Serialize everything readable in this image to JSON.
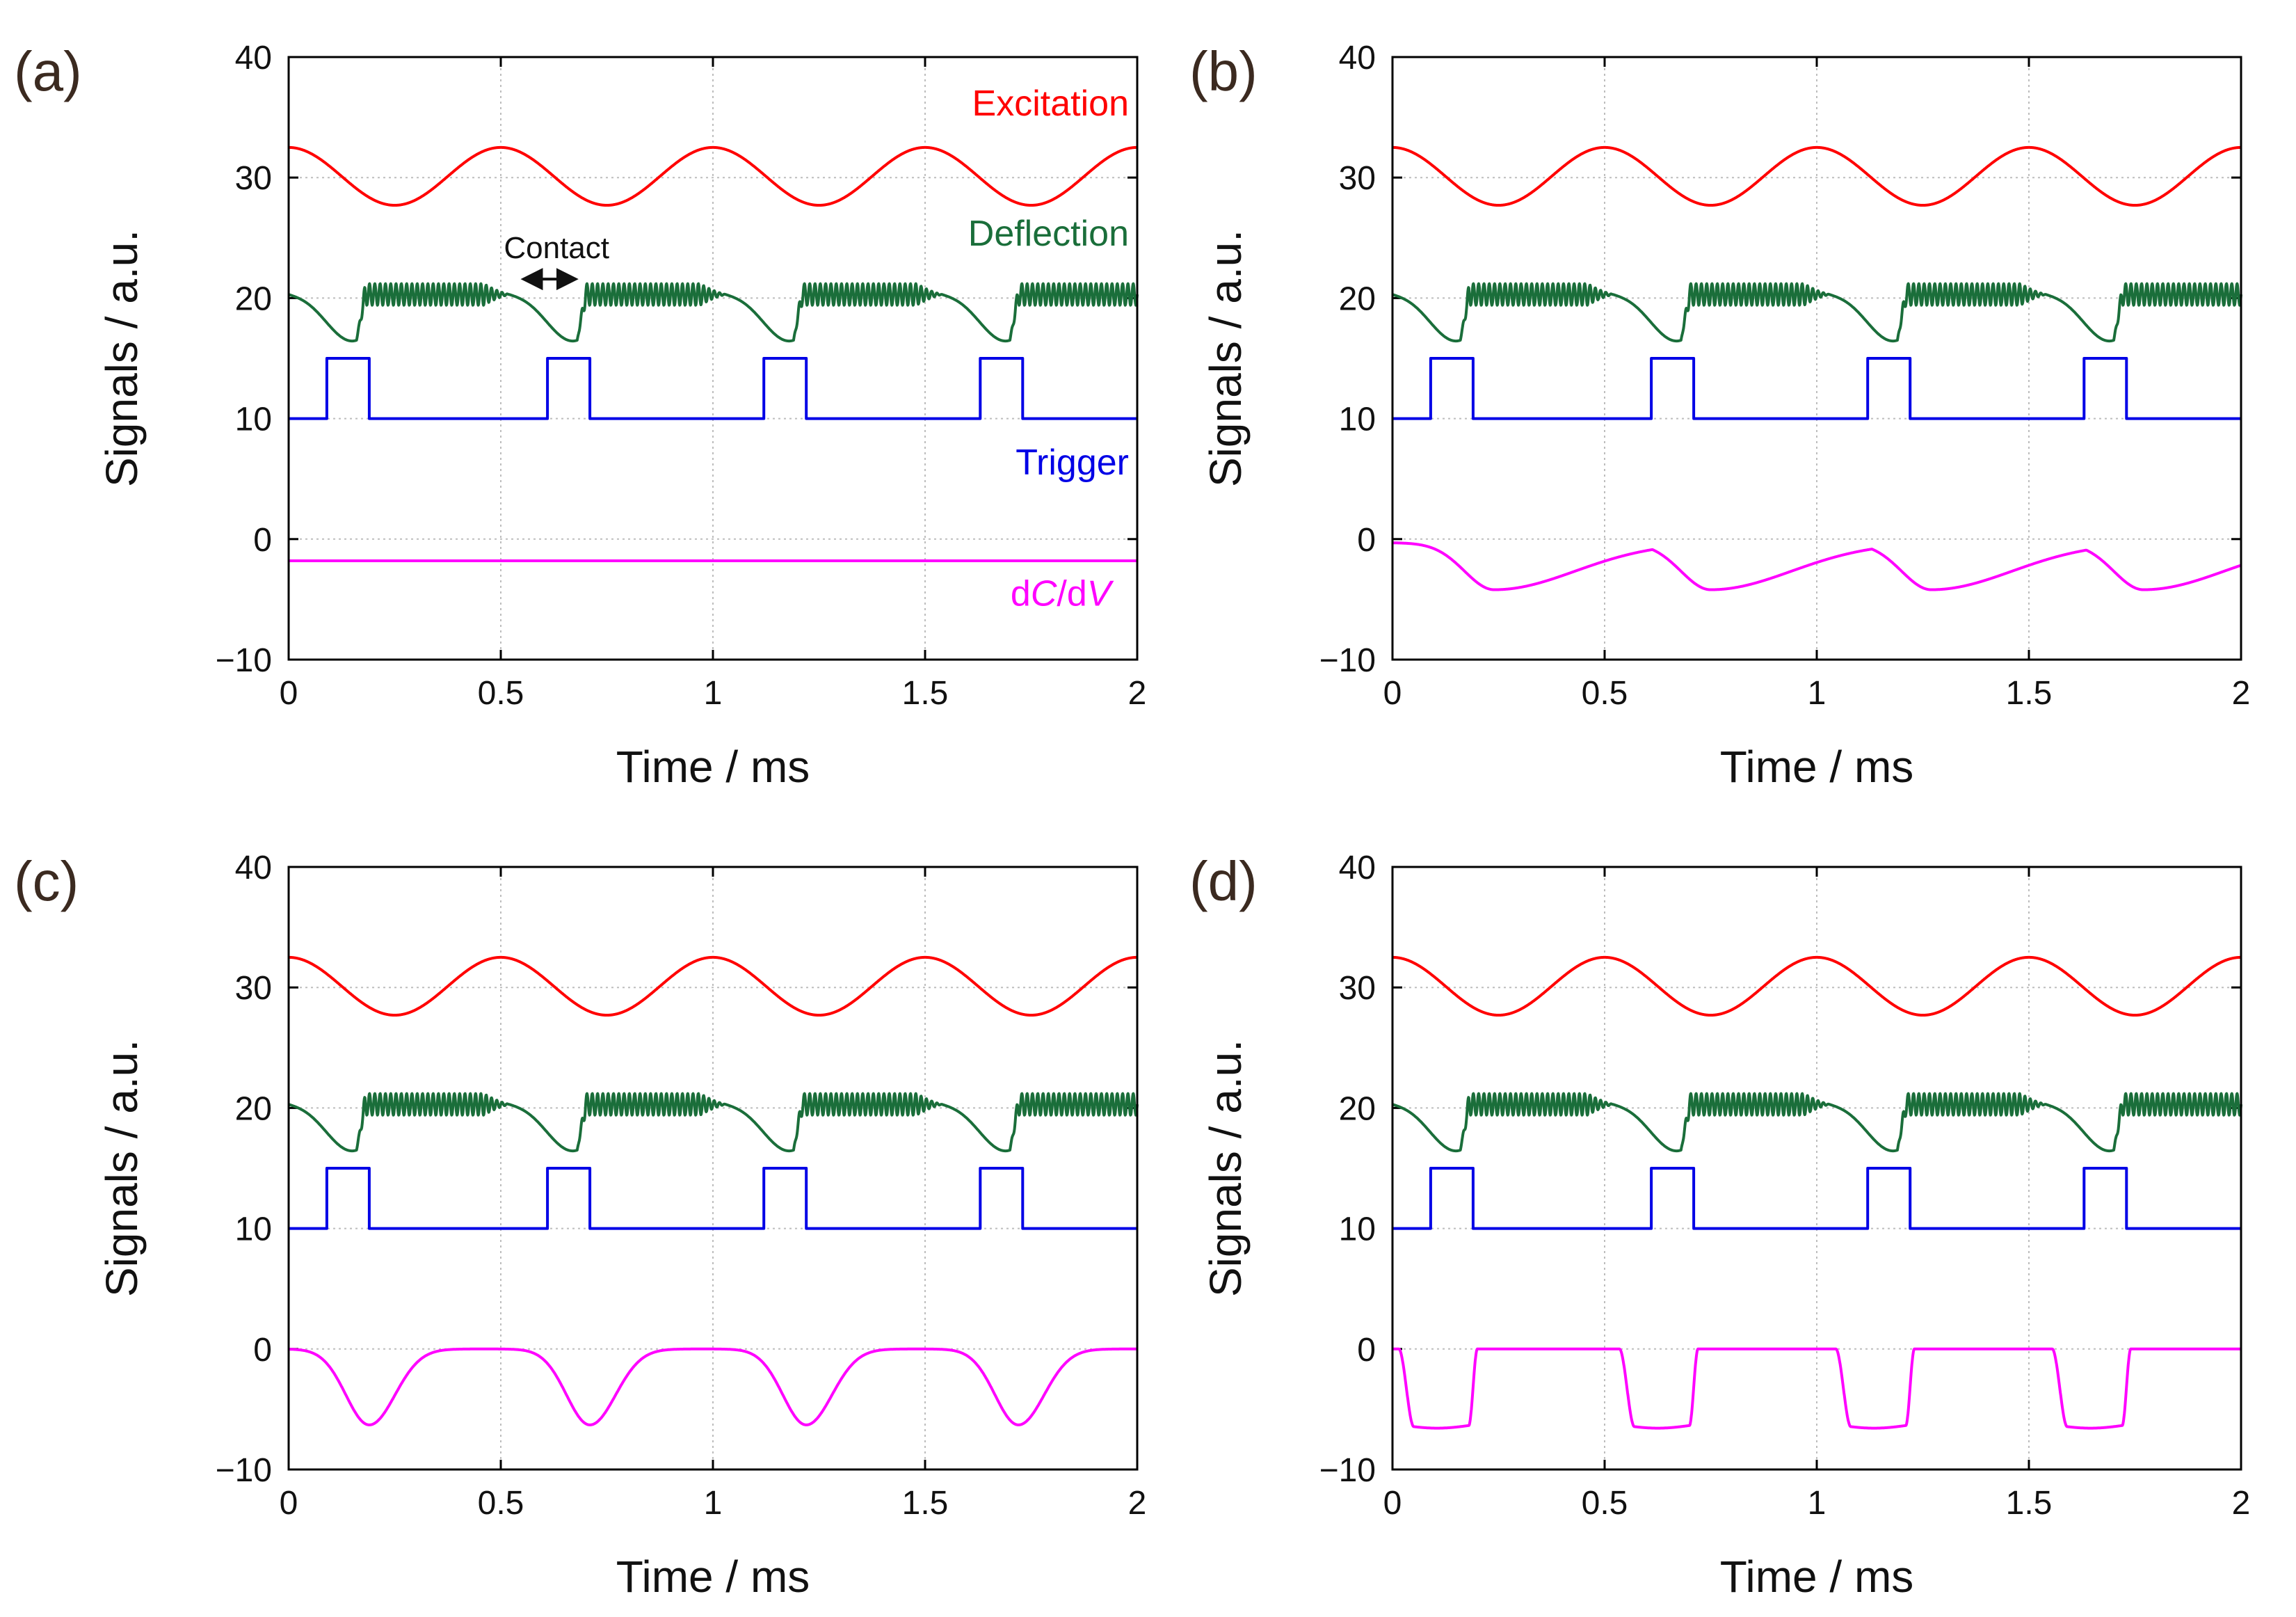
{
  "chart_data": [
    {
      "panel": "(a)",
      "type": "line",
      "xlabel": "Time / ms",
      "ylabel": "Signals / a.u.",
      "xlim": [
        0,
        2
      ],
      "ylim": [
        -10,
        40
      ],
      "xticks": [
        "0",
        "0.5",
        "1",
        "1.5",
        "2"
      ],
      "yticks": [
        "−10",
        "0",
        "10",
        "20",
        "30",
        "40"
      ],
      "grid": true,
      "series": [
        {
          "name": "Excitation",
          "color": "#ff0000",
          "kind": "sine",
          "offset": 30.1,
          "amplitude": 2.4,
          "period_ms": 0.5
        },
        {
          "name": "Deflection",
          "color": "#1a6e3a",
          "kind": "deflection",
          "baseline": 20.3,
          "dip_min": 16.5,
          "dip_times_ms": [
            0.16,
            0.68,
            1.19,
            1.7
          ]
        },
        {
          "name": "Trigger",
          "color": "#0000e6",
          "kind": "square",
          "low": 10,
          "high": 15,
          "pulses_ms": [
            [
              0.09,
              0.19
            ],
            [
              0.61,
              0.71
            ],
            [
              1.12,
              1.22
            ],
            [
              1.63,
              1.73
            ]
          ]
        },
        {
          "name": "dC/dV",
          "color": "#ff00ff",
          "kind": "flat",
          "value": -1.8
        }
      ],
      "legend": {
        "Excitation": "Excitation",
        "Deflection": "Deflection",
        "Trigger": "Trigger",
        "dC_prefix": "d",
        "dC_C": "C",
        "dC_mid": "/d",
        "dC_V": "V"
      },
      "annotation": {
        "text": "Contact",
        "arrow_ms": [
          0.55,
          0.68
        ],
        "arrow_y": 18.8
      }
    },
    {
      "panel": "(b)",
      "type": "line",
      "xlabel": "Time / ms",
      "ylabel": "Signals / a.u.",
      "xlim": [
        0,
        2
      ],
      "ylim": [
        -10,
        40
      ],
      "xticks": [
        "0",
        "0.5",
        "1",
        "1.5",
        "2"
      ],
      "yticks": [
        "−10",
        "0",
        "10",
        "20",
        "30",
        "40"
      ],
      "grid": true,
      "series": [
        {
          "name": "Excitation",
          "color": "#ff0000",
          "kind": "sine",
          "offset": 30.1,
          "amplitude": 2.4,
          "period_ms": 0.5
        },
        {
          "name": "Deflection",
          "color": "#1a6e3a",
          "kind": "deflection",
          "baseline": 20.3,
          "dip_min": 16.5,
          "dip_times_ms": [
            0.16,
            0.68,
            1.19,
            1.7
          ]
        },
        {
          "name": "Trigger",
          "color": "#0000e6",
          "kind": "square",
          "low": 10,
          "high": 15,
          "pulses_ms": [
            [
              0.09,
              0.19
            ],
            [
              0.61,
              0.71
            ],
            [
              1.12,
              1.22
            ],
            [
              1.63,
              1.73
            ]
          ]
        },
        {
          "name": "dC/dV",
          "color": "#ff00ff",
          "kind": "smooth_dip",
          "baseline": -0.3,
          "min": -4.2,
          "dip_times_ms": [
            0.24,
            0.75,
            1.27,
            1.77
          ],
          "width_ms": 0.2
        }
      ]
    },
    {
      "panel": "(c)",
      "type": "line",
      "xlabel": "Time / ms",
      "ylabel": "Signals / a.u.",
      "xlim": [
        0,
        2
      ],
      "ylim": [
        -10,
        40
      ],
      "xticks": [
        "0",
        "0.5",
        "1",
        "1.5",
        "2"
      ],
      "yticks": [
        "−10",
        "0",
        "10",
        "20",
        "30",
        "40"
      ],
      "grid": true,
      "series": [
        {
          "name": "Excitation",
          "color": "#ff0000",
          "kind": "sine",
          "offset": 30.1,
          "amplitude": 2.4,
          "period_ms": 0.5
        },
        {
          "name": "Deflection",
          "color": "#1a6e3a",
          "kind": "deflection",
          "baseline": 20.3,
          "dip_min": 16.5,
          "dip_times_ms": [
            0.16,
            0.68,
            1.19,
            1.7
          ]
        },
        {
          "name": "Trigger",
          "color": "#0000e6",
          "kind": "square",
          "low": 10,
          "high": 15,
          "pulses_ms": [
            [
              0.09,
              0.19
            ],
            [
              0.61,
              0.71
            ],
            [
              1.12,
              1.22
            ],
            [
              1.63,
              1.73
            ]
          ]
        },
        {
          "name": "dC/dV",
          "color": "#ff00ff",
          "kind": "gauss_dip",
          "baseline": 0,
          "min": -6.3,
          "dip_times_ms": [
            0.19,
            0.71,
            1.22,
            1.72
          ],
          "width_ms": 0.055
        }
      ]
    },
    {
      "panel": "(d)",
      "type": "line",
      "xlabel": "Time / ms",
      "ylabel": "Signals / a.u.",
      "xlim": [
        0,
        2
      ],
      "ylim": [
        -10,
        40
      ],
      "xticks": [
        "0",
        "0.5",
        "1",
        "1.5",
        "2"
      ],
      "yticks": [
        "−10",
        "0",
        "10",
        "20",
        "30",
        "40"
      ],
      "grid": true,
      "series": [
        {
          "name": "Excitation",
          "color": "#ff0000",
          "kind": "sine",
          "offset": 30.1,
          "amplitude": 2.4,
          "period_ms": 0.5
        },
        {
          "name": "Deflection",
          "color": "#1a6e3a",
          "kind": "deflection",
          "baseline": 20.3,
          "dip_min": 16.5,
          "dip_times_ms": [
            0.16,
            0.68,
            1.19,
            1.7
          ]
        },
        {
          "name": "Trigger",
          "color": "#0000e6",
          "kind": "square",
          "low": 10,
          "high": 15,
          "pulses_ms": [
            [
              0.09,
              0.19
            ],
            [
              0.61,
              0.71
            ],
            [
              1.12,
              1.22
            ],
            [
              1.63,
              1.73
            ]
          ]
        },
        {
          "name": "dC/dV",
          "color": "#ff00ff",
          "kind": "box_dip",
          "baseline": 0,
          "min": -6.8,
          "pulses_ms": [
            [
              0.02,
              0.19
            ],
            [
              0.54,
              0.71
            ],
            [
              1.05,
              1.22
            ],
            [
              1.56,
              1.73
            ]
          ]
        }
      ]
    }
  ]
}
